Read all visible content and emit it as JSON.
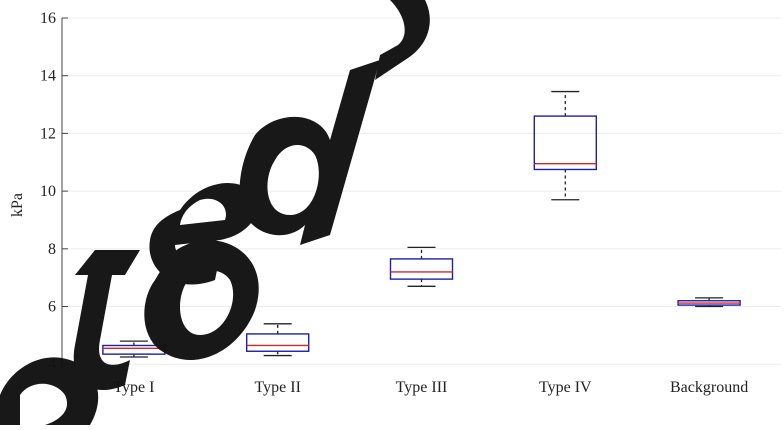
{
  "chart_data": {
    "type": "boxplot",
    "ylabel": "kPa",
    "ylim": [
      3.8,
      16
    ],
    "yticks": [
      4,
      6,
      8,
      10,
      12,
      14,
      16
    ],
    "grid": true,
    "categories": [
      "Type I",
      "Type II",
      "Type III",
      "Type IV",
      "Background"
    ],
    "boxes": [
      {
        "category": "Type I",
        "whisker_low": 4.25,
        "q1": 4.35,
        "median": 4.55,
        "q3": 4.65,
        "whisker_high": 4.8
      },
      {
        "category": "Type II",
        "whisker_low": 4.3,
        "q1": 4.45,
        "median": 4.65,
        "q3": 5.05,
        "whisker_high": 5.4
      },
      {
        "category": "Type III",
        "whisker_low": 6.7,
        "q1": 6.95,
        "median": 7.2,
        "q3": 7.65,
        "whisker_high": 8.05
      },
      {
        "category": "Type IV",
        "whisker_low": 9.7,
        "q1": 10.75,
        "median": 10.95,
        "q3": 12.6,
        "whisker_high": 13.45
      },
      {
        "category": "Background",
        "whisker_low": 6.0,
        "q1": 6.05,
        "median": 6.12,
        "q3": 6.2,
        "whisker_high": 6.3
      }
    ],
    "colors": {
      "box": "#1f1fa8",
      "median": "#d62728",
      "whisker": "#222222",
      "grid": "#ececec",
      "axis": "#444444"
    }
  },
  "watermark": {
    "text": "Accepted Manuscript",
    "color": "#000000"
  }
}
